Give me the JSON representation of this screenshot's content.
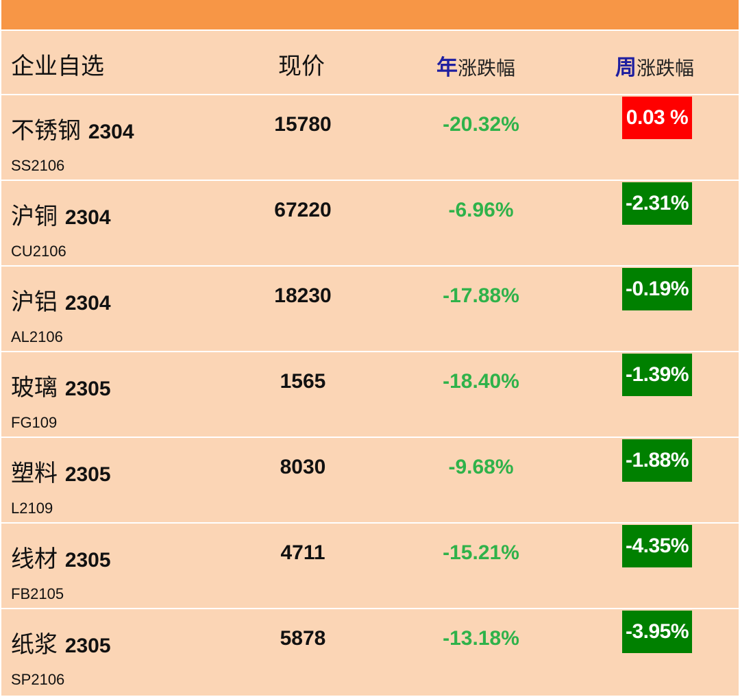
{
  "header": {
    "col1": "企业自选",
    "col2": "现价",
    "col3_accent": "年",
    "col3_rest": "涨跌幅",
    "col4_accent": "周",
    "col4_rest": "涨跌幅"
  },
  "colors": {
    "top_bar": "#f79646",
    "row_bg": "#fbd5b5",
    "year_text": "#2fb24a",
    "week_up": "#ff0000",
    "week_down": "#008000"
  },
  "rows": [
    {
      "name_cn": "不锈钢",
      "name_code": "2304",
      "code": "SS2106",
      "price": "15780",
      "year_change": "-20.32%",
      "week_change": "0.03 %",
      "week_dir": "up"
    },
    {
      "name_cn": "沪铜",
      "name_code": "2304",
      "code": "CU2106",
      "price": "67220",
      "year_change": "-6.96%",
      "week_change": "-2.31%",
      "week_dir": "down"
    },
    {
      "name_cn": "沪铝",
      "name_code": "2304",
      "code": "AL2106",
      "price": "18230",
      "year_change": "-17.88%",
      "week_change": "-0.19%",
      "week_dir": "down"
    },
    {
      "name_cn": "玻璃",
      "name_code": "2305",
      "code": "FG109",
      "price": "1565",
      "year_change": "-18.40%",
      "week_change": "-1.39%",
      "week_dir": "down"
    },
    {
      "name_cn": "塑料",
      "name_code": "2305",
      "code": "L2109",
      "price": "8030",
      "year_change": "-9.68%",
      "week_change": "-1.88%",
      "week_dir": "down"
    },
    {
      "name_cn": "线材",
      "name_code": "2305",
      "code": "FB2105",
      "price": "4711",
      "year_change": "-15.21%",
      "week_change": "-4.35%",
      "week_dir": "down"
    },
    {
      "name_cn": "纸浆",
      "name_code": "2305",
      "code": "SP2106",
      "price": "5878",
      "year_change": "-13.18%",
      "week_change": "-3.95%",
      "week_dir": "down"
    }
  ]
}
